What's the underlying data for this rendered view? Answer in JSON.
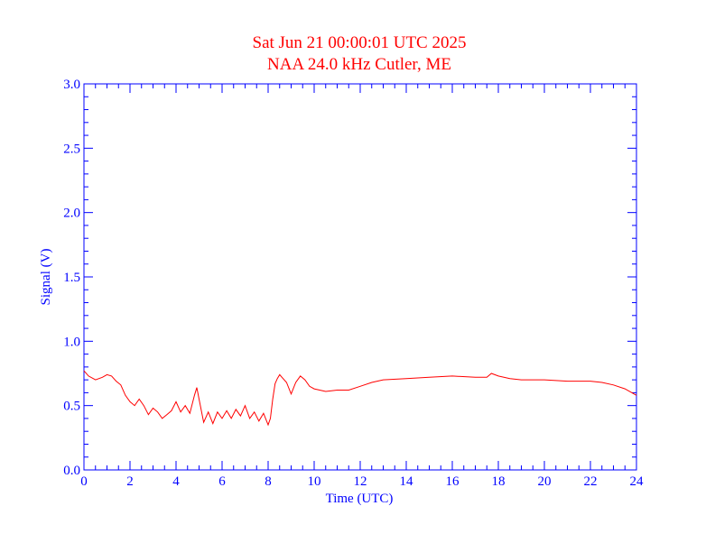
{
  "chart_data": {
    "type": "line",
    "title": "Sat Jun 21 00:00:01 UTC 2025",
    "subtitle": "NAA 24.0 kHz Cutler, ME",
    "xlabel": "Time (UTC)",
    "ylabel": "Signal (V)",
    "xlim": [
      0,
      24
    ],
    "ylim": [
      0,
      3.0
    ],
    "xticks": [
      0,
      2,
      4,
      6,
      8,
      10,
      12,
      14,
      16,
      18,
      20,
      22,
      24
    ],
    "xtick_labels": [
      "0",
      "2",
      "4",
      "6",
      "8",
      "10",
      "12",
      "14",
      "16",
      "18",
      "20",
      "22",
      "24"
    ],
    "yticks": [
      0,
      0.5,
      1.0,
      1.5,
      2.0,
      2.5,
      3.0
    ],
    "ytick_labels": [
      "0.0",
      "0.5",
      "1.0",
      "1.5",
      "2.0",
      "2.5",
      "3.0"
    ],
    "grid": false,
    "colors": {
      "series": "#ff0000",
      "axes": "#0000ff",
      "title": "#ff0000"
    },
    "series": [
      {
        "x": [
          0,
          0.2,
          0.5,
          0.8,
          1.0,
          1.2,
          1.4,
          1.6,
          1.8,
          2.0,
          2.2,
          2.4,
          2.6,
          2.8,
          3.0,
          3.2,
          3.4,
          3.6,
          3.8,
          4.0,
          4.2,
          4.4,
          4.6,
          4.8,
          4.9,
          5.0,
          5.2,
          5.4,
          5.6,
          5.8,
          6.0,
          6.2,
          6.4,
          6.6,
          6.8,
          7.0,
          7.2,
          7.4,
          7.6,
          7.8,
          8.0,
          8.1,
          8.2,
          8.3,
          8.4,
          8.5,
          8.6,
          8.8,
          9.0,
          9.2,
          9.4,
          9.6,
          9.8,
          10.0,
          10.5,
          11.0,
          11.5,
          12.0,
          12.5,
          13.0,
          14.0,
          15.0,
          16.0,
          17.0,
          17.5,
          17.7,
          18.0,
          18.5,
          19.0,
          20.0,
          21.0,
          22.0,
          22.5,
          23.0,
          23.5,
          24.0
        ],
        "y": [
          0.77,
          0.73,
          0.7,
          0.72,
          0.74,
          0.73,
          0.69,
          0.66,
          0.58,
          0.53,
          0.5,
          0.55,
          0.5,
          0.43,
          0.48,
          0.45,
          0.4,
          0.43,
          0.46,
          0.53,
          0.45,
          0.5,
          0.44,
          0.58,
          0.64,
          0.55,
          0.37,
          0.45,
          0.36,
          0.45,
          0.4,
          0.46,
          0.4,
          0.47,
          0.42,
          0.5,
          0.4,
          0.45,
          0.38,
          0.44,
          0.35,
          0.4,
          0.55,
          0.67,
          0.71,
          0.74,
          0.72,
          0.68,
          0.59,
          0.68,
          0.73,
          0.7,
          0.65,
          0.63,
          0.61,
          0.62,
          0.62,
          0.65,
          0.68,
          0.7,
          0.71,
          0.72,
          0.73,
          0.72,
          0.72,
          0.75,
          0.73,
          0.71,
          0.7,
          0.7,
          0.69,
          0.69,
          0.68,
          0.66,
          0.63,
          0.58
        ]
      }
    ]
  }
}
